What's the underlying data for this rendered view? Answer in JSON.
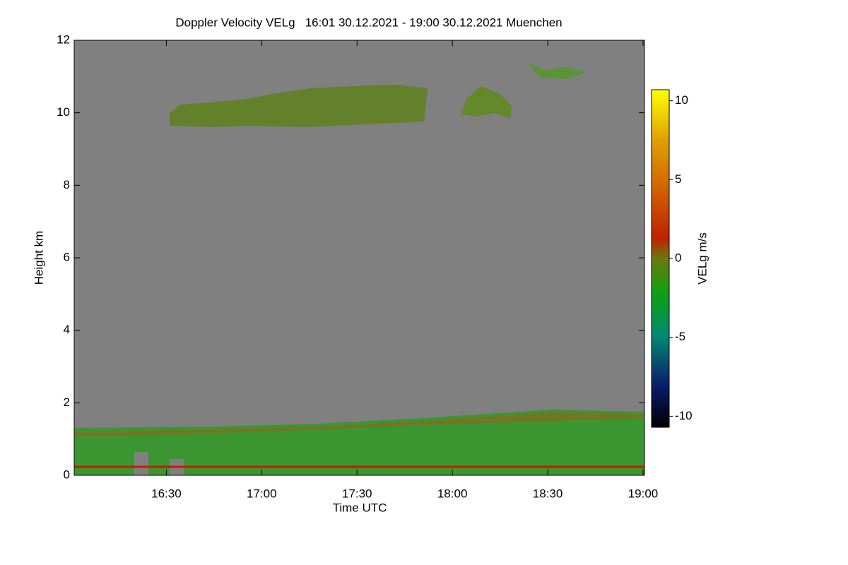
{
  "chart_data": {
    "type": "heatmap",
    "title": "Doppler Velocity VELg   16:01 30.12.2021 - 19:00 30.12.2021 Muenchen",
    "x_label": "Time UTC",
    "y_label": "Height km",
    "xlim": [
      "16:01",
      "19:00"
    ],
    "xticks": [
      "16:30",
      "17:00",
      "17:30",
      "18:00",
      "18:30",
      "19:00"
    ],
    "ylim": [
      0,
      12
    ],
    "yticks": [
      0,
      2,
      4,
      6,
      8,
      10,
      12
    ],
    "colorbar": {
      "label": "VELg m/s",
      "lim": [
        -10.7,
        10.7
      ],
      "ticks": [
        -10,
        -5,
        0,
        5,
        10
      ]
    }
  }
}
